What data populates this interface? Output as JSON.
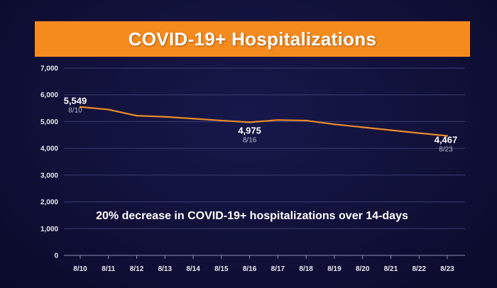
{
  "chart_data": {
    "type": "line",
    "title": "COVID-19+ Hospitalizations",
    "xlabel": "",
    "ylabel": "",
    "categories": [
      "8/10",
      "8/11",
      "8/12",
      "8/13",
      "8/14",
      "8/15",
      "8/16",
      "8/17",
      "8/18",
      "8/19",
      "8/20",
      "8/21",
      "8/22",
      "8/23"
    ],
    "values": [
      5549,
      5450,
      5220,
      5180,
      5110,
      5040,
      4975,
      5060,
      5040,
      4900,
      4790,
      4680,
      4570,
      4467
    ],
    "ylim": [
      0,
      7000
    ],
    "yticks": [
      0,
      1000,
      2000,
      3000,
      4000,
      5000,
      6000,
      7000
    ],
    "ytick_labels": [
      "0",
      "1,000",
      "2,000",
      "3,000",
      "4,000",
      "5,000",
      "6,000",
      "7,000"
    ],
    "grid": true,
    "line_color": "#e98a2a",
    "annotations": [
      {
        "index": 0,
        "value_text": "5,549",
        "date_text": "8/10"
      },
      {
        "index": 6,
        "value_text": "4,975",
        "date_text": "8/16"
      },
      {
        "index": 13,
        "value_text": "4,467",
        "date_text": "8/23"
      }
    ],
    "note": "20% decrease in COVID-19+ hospitalizations over 14-days"
  },
  "colors": {
    "title_bar": "#f58b1f",
    "background": "#101038",
    "gridline": "#3a3c6e"
  }
}
